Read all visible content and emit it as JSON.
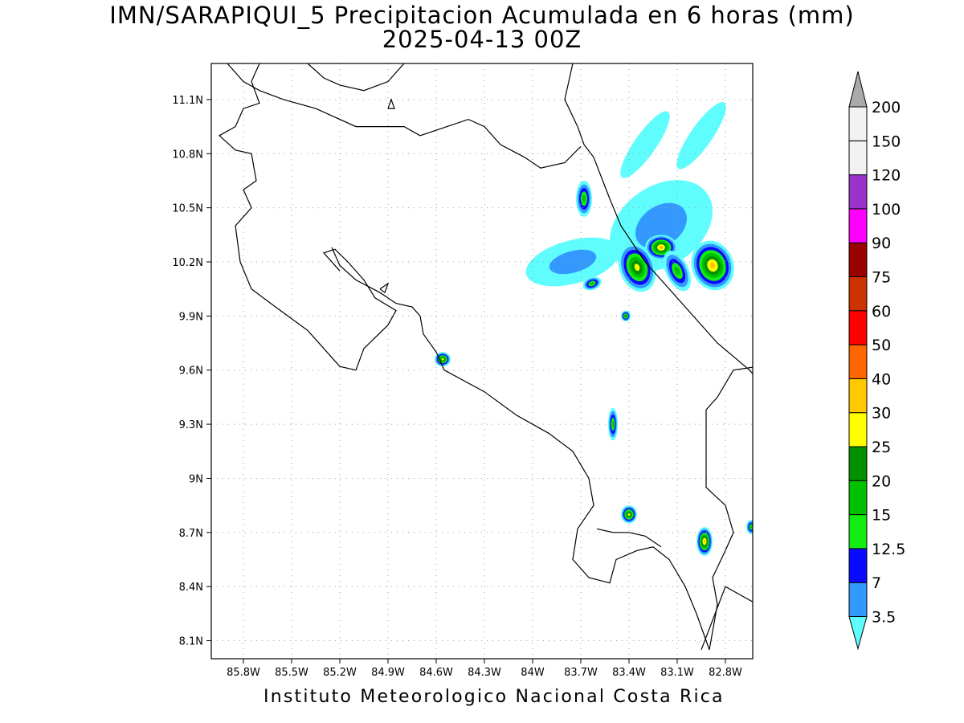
{
  "title_line1": "IMN/SARAPIQUI_5 Precipitacion Acumulada en 6 horas (mm)",
  "title_line2": "2025-04-13 00Z",
  "credit": "Instituto Meteorologico Nacional Costa Rica",
  "map": {
    "lon_range": [
      -86.0,
      -82.63
    ],
    "lat_range": [
      8.0,
      11.3
    ],
    "grid": true,
    "lon_ticks": [
      "85.8W",
      "85.5W",
      "85.2W",
      "84.9W",
      "84.6W",
      "84.3W",
      "84W",
      "83.7W",
      "83.4W",
      "83.1W",
      "82.8W"
    ],
    "lat_ticks": [
      "8.1N",
      "8.4N",
      "8.7N",
      "9N",
      "9.3N",
      "9.6N",
      "9.9N",
      "10.2N",
      "10.5N",
      "10.8N",
      "11.1N"
    ]
  },
  "colorbar": {
    "labels": [
      "3.5",
      "7",
      "12.5",
      "15",
      "20",
      "25",
      "30",
      "40",
      "50",
      "60",
      "75",
      "90",
      "100",
      "120",
      "150",
      "200"
    ],
    "colors": [
      "#5ffdfd",
      "#3399ff",
      "#0a0aff",
      "#12ee12",
      "#00c000",
      "#009000",
      "#ffff00",
      "#ffc800",
      "#ff6600",
      "#ff0000",
      "#cc3300",
      "#990000",
      "#ff00ff",
      "#9933cc",
      "#f2f2f2",
      "#aaaaaa"
    ]
  },
  "chart_data": {
    "type": "heatmap",
    "title": "IMN/SARAPIQUI_5 Precipitacion Acumulada en 6 horas (mm)",
    "subtitle": "2025-04-13 00Z",
    "levels": [
      3.5,
      7,
      12.5,
      15,
      20,
      25,
      30,
      40,
      50,
      60,
      75,
      90,
      100,
      120,
      150,
      200
    ],
    "xlim": [
      -86.0,
      -82.63
    ],
    "ylim": [
      8.0,
      11.3
    ],
    "rain_cells": [
      {
        "lon": -83.2,
        "lat": 10.4,
        "rlon": 0.35,
        "rlat": 0.22,
        "rot": -35,
        "max": 7
      },
      {
        "lon": -83.75,
        "lat": 10.2,
        "rlon": 0.3,
        "rlat": 0.12,
        "rot": -15,
        "max": 7
      },
      {
        "lon": -83.3,
        "lat": 10.85,
        "rlon": 0.25,
        "rlat": 0.06,
        "rot": -55,
        "max": 3.5
      },
      {
        "lon": -82.95,
        "lat": 10.9,
        "rlon": 0.25,
        "rlat": 0.06,
        "rot": -55,
        "max": 3.5
      },
      {
        "lon": -83.68,
        "lat": 10.55,
        "rlon": 0.05,
        "rlat": 0.1,
        "rot": 0,
        "max": 20
      },
      {
        "lon": -83.35,
        "lat": 10.17,
        "rlon": 0.11,
        "rlat": 0.14,
        "rot": -20,
        "max": 30
      },
      {
        "lon": -83.2,
        "lat": 10.28,
        "rlon": 0.1,
        "rlat": 0.07,
        "rot": 0,
        "max": 40
      },
      {
        "lon": -82.88,
        "lat": 10.18,
        "rlon": 0.13,
        "rlat": 0.14,
        "rot": -20,
        "max": 40
      },
      {
        "lon": -83.1,
        "lat": 10.15,
        "rlon": 0.07,
        "rlat": 0.12,
        "rot": -25,
        "max": 20
      },
      {
        "lon": -83.63,
        "lat": 10.08,
        "rlon": 0.06,
        "rlat": 0.035,
        "rot": -20,
        "max": 20
      },
      {
        "lon": -83.42,
        "lat": 9.9,
        "rlon": 0.03,
        "rlat": 0.03,
        "rot": 0,
        "max": 25
      },
      {
        "lon": -84.56,
        "lat": 9.66,
        "rlon": 0.05,
        "rlat": 0.04,
        "rot": 0,
        "max": 30
      },
      {
        "lon": -83.5,
        "lat": 9.3,
        "rlon": 0.03,
        "rlat": 0.09,
        "rot": 0,
        "max": 20
      },
      {
        "lon": -83.4,
        "lat": 8.8,
        "rlon": 0.05,
        "rlat": 0.05,
        "rot": 0,
        "max": 30
      },
      {
        "lon": -82.93,
        "lat": 8.65,
        "rlon": 0.05,
        "rlat": 0.08,
        "rot": 0,
        "max": 40
      },
      {
        "lon": -82.64,
        "lat": 8.73,
        "rlon": 0.03,
        "rlat": 0.04,
        "rot": 0,
        "max": 20
      }
    ]
  }
}
